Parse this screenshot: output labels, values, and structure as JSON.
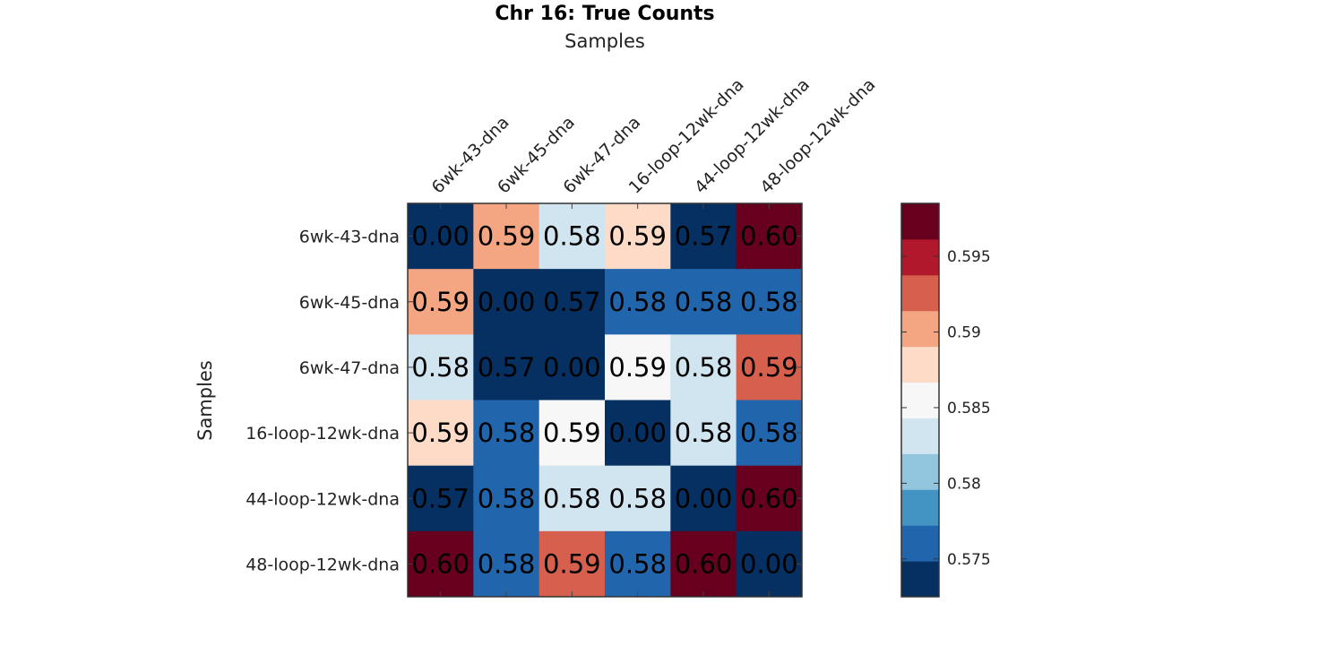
{
  "chart_data": {
    "type": "heatmap",
    "title": "Chr 16: True Counts",
    "xlabel": "Samples",
    "ylabel": "Samples",
    "x_categories": [
      "6wk-43-dna",
      "6wk-45-dna",
      "6wk-47-dna",
      "16-loop-12wk-dna",
      "44-loop-12wk-dna",
      "48-loop-12wk-dna"
    ],
    "y_categories": [
      "6wk-43-dna",
      "6wk-45-dna",
      "6wk-47-dna",
      "16-loop-12wk-dna",
      "44-loop-12wk-dna",
      "48-loop-12wk-dna"
    ],
    "values": [
      [
        0.0,
        0.59,
        0.583,
        0.588,
        0.572,
        0.598
      ],
      [
        0.59,
        0.0,
        0.572,
        0.577,
        0.577,
        0.576
      ],
      [
        0.583,
        0.572,
        0.0,
        0.585,
        0.583,
        0.592
      ],
      [
        0.588,
        0.577,
        0.585,
        0.0,
        0.583,
        0.577
      ],
      [
        0.572,
        0.577,
        0.583,
        0.583,
        0.0,
        0.598
      ],
      [
        0.598,
        0.576,
        0.592,
        0.577,
        0.598,
        0.0
      ]
    ],
    "cell_labels": [
      [
        "0.00",
        "0.59",
        "0.58",
        "0.59",
        "0.57",
        "0.60"
      ],
      [
        "0.59",
        "0.00",
        "0.57",
        "0.58",
        "0.58",
        "0.58"
      ],
      [
        "0.58",
        "0.57",
        "0.00",
        "0.59",
        "0.58",
        "0.59"
      ],
      [
        "0.59",
        "0.58",
        "0.59",
        "0.00",
        "0.58",
        "0.58"
      ],
      [
        "0.57",
        "0.58",
        "0.58",
        "0.58",
        "0.00",
        "0.60"
      ],
      [
        "0.60",
        "0.58",
        "0.59",
        "0.58",
        "0.60",
        "0.00"
      ]
    ],
    "colorbar": {
      "range": [
        0.5725,
        0.5985
      ],
      "colors": [
        "#053061",
        "#2166ac",
        "#4393c3",
        "#92c5de",
        "#d1e5f0",
        "#f7f7f7",
        "#fddbc7",
        "#f4a582",
        "#d6604d",
        "#b2182b",
        "#67001f"
      ],
      "ticks": [
        0.575,
        0.58,
        0.585,
        0.59,
        0.595
      ],
      "tick_labels": [
        "0.575",
        "0.58",
        "0.585",
        "0.59",
        "0.595"
      ]
    }
  }
}
